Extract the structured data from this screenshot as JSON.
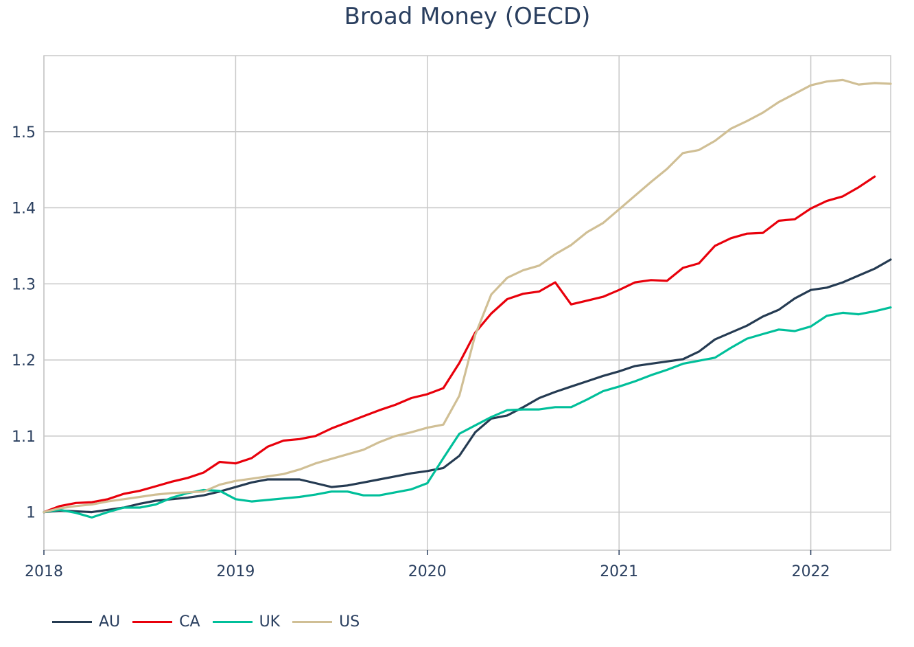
{
  "chart_data": {
    "type": "line",
    "title": "Broad Money (OECD)",
    "xlabel": "",
    "ylabel": "",
    "x_ticks": [
      "2018",
      "2019",
      "2020",
      "2021",
      "2022"
    ],
    "y_ticks": [
      "1",
      "1.1",
      "1.2",
      "1.3",
      "1.4",
      "1.5"
    ],
    "xlim": [
      "2018-01",
      "2022-06"
    ],
    "ylim": [
      0.95,
      1.6
    ],
    "grid": true,
    "legend_position": "bottom-left",
    "x": [
      "2018-01",
      "2018-02",
      "2018-03",
      "2018-04",
      "2018-05",
      "2018-06",
      "2018-07",
      "2018-08",
      "2018-09",
      "2018-10",
      "2018-11",
      "2018-12",
      "2019-01",
      "2019-02",
      "2019-03",
      "2019-04",
      "2019-05",
      "2019-06",
      "2019-07",
      "2019-08",
      "2019-09",
      "2019-10",
      "2019-11",
      "2019-12",
      "2020-01",
      "2020-02",
      "2020-03",
      "2020-04",
      "2020-05",
      "2020-06",
      "2020-07",
      "2020-08",
      "2020-09",
      "2020-10",
      "2020-11",
      "2020-12",
      "2021-01",
      "2021-02",
      "2021-03",
      "2021-04",
      "2021-05",
      "2021-06",
      "2021-07",
      "2021-08",
      "2021-09",
      "2021-10",
      "2021-11",
      "2021-12",
      "2022-01",
      "2022-02",
      "2022-03",
      "2022-04",
      "2022-05",
      "2022-06"
    ],
    "series": [
      {
        "name": "AU",
        "color": "#253b52",
        "values": [
          1.0,
          1.002,
          1.001,
          1.0,
          1.003,
          1.006,
          1.011,
          1.015,
          1.017,
          1.019,
          1.022,
          1.027,
          1.033,
          1.039,
          1.043,
          1.043,
          1.043,
          1.038,
          1.033,
          1.035,
          1.039,
          1.043,
          1.047,
          1.051,
          1.054,
          1.058,
          1.074,
          1.105,
          1.123,
          1.127,
          1.138,
          1.15,
          1.158,
          1.165,
          1.172,
          1.179,
          1.185,
          1.192,
          1.195,
          1.198,
          1.201,
          1.211,
          1.227,
          1.236,
          1.245,
          1.257,
          1.266,
          1.281,
          1.292,
          1.295,
          1.302,
          1.311,
          1.32,
          1.332
        ]
      },
      {
        "name": "CA",
        "color": "#e8000b",
        "values": [
          1.0,
          1.008,
          1.012,
          1.013,
          1.017,
          1.024,
          1.028,
          1.034,
          1.04,
          1.045,
          1.052,
          1.066,
          1.064,
          1.071,
          1.086,
          1.094,
          1.096,
          1.1,
          1.11,
          1.118,
          1.126,
          1.134,
          1.141,
          1.15,
          1.155,
          1.163,
          1.196,
          1.236,
          1.261,
          1.28,
          1.287,
          1.29,
          1.302,
          1.273,
          1.278,
          1.283,
          1.292,
          1.302,
          1.305,
          1.304,
          1.321,
          1.327,
          1.35,
          1.36,
          1.366,
          1.367,
          1.383,
          1.385,
          1.399,
          1.409,
          1.415,
          1.427,
          1.441,
          null
        ]
      },
      {
        "name": "UK",
        "color": "#00bf9a",
        "values": [
          1.0,
          1.003,
          0.999,
          0.993,
          1.0,
          1.006,
          1.006,
          1.01,
          1.019,
          1.025,
          1.029,
          1.028,
          1.017,
          1.014,
          1.016,
          1.018,
          1.02,
          1.023,
          1.027,
          1.027,
          1.022,
          1.022,
          1.026,
          1.03,
          1.038,
          1.071,
          1.103,
          1.114,
          1.125,
          1.134,
          1.135,
          1.135,
          1.138,
          1.138,
          1.148,
          1.159,
          1.165,
          1.172,
          1.18,
          1.187,
          1.195,
          1.199,
          1.203,
          1.216,
          1.228,
          1.234,
          1.24,
          1.238,
          1.244,
          1.258,
          1.262,
          1.26,
          1.264,
          1.269
        ]
      },
      {
        "name": "US",
        "color": "#d0bf95",
        "values": [
          1.0,
          1.005,
          1.008,
          1.01,
          1.014,
          1.017,
          1.02,
          1.023,
          1.025,
          1.026,
          1.027,
          1.036,
          1.041,
          1.044,
          1.047,
          1.05,
          1.056,
          1.064,
          1.07,
          1.076,
          1.082,
          1.092,
          1.1,
          1.105,
          1.111,
          1.115,
          1.153,
          1.233,
          1.286,
          1.308,
          1.318,
          1.324,
          1.339,
          1.351,
          1.368,
          1.38,
          1.398,
          1.416,
          1.434,
          1.451,
          1.472,
          1.476,
          1.488,
          1.504,
          1.514,
          1.525,
          1.539,
          1.55,
          1.561,
          1.566,
          1.568,
          1.562,
          1.564,
          1.563
        ]
      }
    ]
  }
}
